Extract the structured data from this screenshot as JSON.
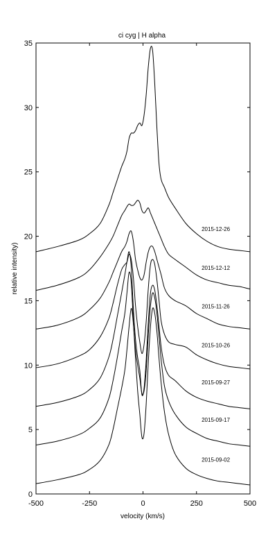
{
  "chart_data": {
    "type": "line",
    "title": "ci cyg | H alpha",
    "xlabel": "velocity (km/s)",
    "ylabel": "relative intensity)",
    "xlim": [
      -500,
      500
    ],
    "ylim": [
      0,
      35
    ],
    "xticks": [
      -500,
      -250,
      0,
      250,
      500
    ],
    "yticks": [
      0,
      5,
      10,
      15,
      20,
      25,
      30,
      35
    ],
    "grid": false,
    "series": [
      {
        "name": "2015-09-02",
        "label_at": [
          340,
          2.5
        ],
        "x": [
          -500,
          -400,
          -300,
          -250,
          -200,
          -160,
          -140,
          -120,
          -100,
          -85,
          -75,
          -65,
          -55,
          -45,
          -35,
          -25,
          -15,
          -5,
          5,
          15,
          25,
          35,
          45,
          55,
          65,
          75,
          85,
          100,
          120,
          150,
          200,
          250,
          300,
          350,
          400,
          450,
          500
        ],
        "y": [
          0.8,
          1.1,
          1.5,
          1.9,
          2.6,
          3.8,
          5.0,
          6.6,
          8.2,
          9.6,
          11.2,
          13.0,
          14.4,
          13.2,
          10.5,
          8.0,
          6.2,
          4.4,
          4.7,
          7.0,
          10.3,
          13.0,
          14.4,
          14.0,
          12.6,
          10.5,
          8.6,
          6.4,
          4.6,
          3.1,
          2.0,
          1.5,
          1.2,
          1.0,
          0.9,
          0.8,
          0.7
        ]
      },
      {
        "name": "2015-09-17",
        "label_at": [
          340,
          5.6
        ],
        "x": [
          -500,
          -400,
          -300,
          -250,
          -200,
          -160,
          -140,
          -120,
          -100,
          -85,
          -75,
          -65,
          -55,
          -45,
          -35,
          -25,
          -15,
          -5,
          5,
          15,
          25,
          35,
          45,
          55,
          65,
          75,
          85,
          100,
          120,
          150,
          200,
          250,
          300,
          350,
          400,
          450,
          500
        ],
        "y": [
          3.8,
          4.1,
          4.6,
          5.1,
          5.9,
          7.4,
          8.8,
          10.6,
          12.6,
          14.0,
          15.6,
          17.2,
          16.4,
          13.4,
          11.2,
          10.0,
          9.0,
          7.8,
          8.0,
          9.6,
          12.4,
          14.6,
          15.6,
          15.2,
          14.0,
          12.2,
          10.4,
          8.4,
          7.2,
          6.2,
          5.2,
          4.7,
          4.3,
          4.1,
          3.9,
          3.8,
          3.7
        ]
      },
      {
        "name": "2015-09-27",
        "label_at": [
          340,
          8.5
        ],
        "x": [
          -500,
          -400,
          -300,
          -250,
          -200,
          -160,
          -140,
          -120,
          -100,
          -85,
          -75,
          -65,
          -55,
          -45,
          -35,
          -25,
          -15,
          -5,
          5,
          15,
          25,
          35,
          45,
          55,
          65,
          75,
          85,
          100,
          120,
          150,
          200,
          250,
          300,
          350,
          400,
          450,
          500
        ],
        "y": [
          6.8,
          7.1,
          7.6,
          8.1,
          9.0,
          10.6,
          12.0,
          13.8,
          15.6,
          17.0,
          18.0,
          18.8,
          17.6,
          14.4,
          12.0,
          10.6,
          9.6,
          7.7,
          8.2,
          10.4,
          13.4,
          15.6,
          16.2,
          15.8,
          14.6,
          13.0,
          11.4,
          10.0,
          9.2,
          8.8,
          8.0,
          7.5,
          7.2,
          7.0,
          6.8,
          6.7,
          6.6
        ]
      },
      {
        "name": "2015-10-26",
        "label_at": [
          340,
          11.4
        ],
        "x": [
          -500,
          -400,
          -300,
          -250,
          -200,
          -160,
          -140,
          -120,
          -100,
          -85,
          -75,
          -65,
          -55,
          -45,
          -35,
          -25,
          -15,
          -5,
          5,
          15,
          25,
          35,
          45,
          55,
          65,
          75,
          85,
          100,
          120,
          150,
          200,
          250,
          300,
          350,
          400,
          450,
          500
        ],
        "y": [
          9.8,
          10.1,
          10.7,
          11.2,
          12.2,
          13.6,
          14.8,
          16.2,
          17.4,
          17.8,
          18.0,
          18.6,
          18.2,
          16.8,
          14.6,
          13.0,
          11.8,
          10.9,
          11.6,
          13.4,
          16.0,
          17.8,
          18.2,
          17.8,
          16.6,
          15.0,
          13.4,
          12.4,
          11.8,
          11.6,
          11.4,
          10.8,
          10.4,
          10.1,
          9.9,
          9.8,
          9.7
        ]
      },
      {
        "name": "2015-11-26",
        "label_at": [
          340,
          14.4
        ],
        "x": [
          -500,
          -400,
          -300,
          -250,
          -200,
          -160,
          -140,
          -120,
          -100,
          -85,
          -75,
          -65,
          -55,
          -45,
          -35,
          -25,
          -15,
          -5,
          5,
          15,
          25,
          35,
          45,
          55,
          65,
          75,
          85,
          100,
          120,
          150,
          200,
          250,
          300,
          350,
          400,
          450,
          500
        ],
        "y": [
          12.8,
          13.1,
          13.7,
          14.3,
          15.2,
          16.4,
          17.2,
          18.0,
          18.8,
          19.2,
          19.6,
          20.2,
          20.4,
          19.6,
          18.2,
          17.4,
          16.8,
          16.6,
          17.0,
          18.0,
          18.8,
          19.2,
          19.2,
          18.8,
          18.2,
          17.6,
          17.0,
          16.0,
          15.4,
          15.0,
          14.6,
          14.0,
          13.6,
          13.2,
          13.0,
          12.9,
          12.8
        ]
      },
      {
        "name": "2015-12-12",
        "label_at": [
          340,
          17.4
        ],
        "x": [
          -500,
          -400,
          -300,
          -250,
          -200,
          -160,
          -140,
          -120,
          -100,
          -85,
          -75,
          -65,
          -55,
          -45,
          -35,
          -25,
          -15,
          -5,
          5,
          15,
          25,
          35,
          45,
          55,
          65,
          75,
          85,
          100,
          120,
          150,
          200,
          250,
          300,
          350,
          400,
          450,
          500
        ],
        "y": [
          15.8,
          16.2,
          16.8,
          17.4,
          18.4,
          19.4,
          20.0,
          20.8,
          21.6,
          22.0,
          22.3,
          22.5,
          22.4,
          22.4,
          22.6,
          22.8,
          22.6,
          22.0,
          21.8,
          22.0,
          22.2,
          21.8,
          21.4,
          21.0,
          20.6,
          20.2,
          19.8,
          19.2,
          18.6,
          18.2,
          17.6,
          17.0,
          16.6,
          16.4,
          16.2,
          16.1,
          15.9
        ]
      },
      {
        "name": "2015-12-26",
        "label_at": [
          340,
          20.4
        ],
        "x": [
          -500,
          -400,
          -300,
          -250,
          -200,
          -160,
          -140,
          -120,
          -100,
          -85,
          -75,
          -65,
          -55,
          -45,
          -35,
          -25,
          -15,
          -5,
          5,
          15,
          25,
          35,
          45,
          55,
          65,
          75,
          85,
          100,
          120,
          150,
          200,
          250,
          300,
          350,
          400,
          450,
          500
        ],
        "y": [
          18.8,
          19.2,
          19.7,
          20.2,
          21.0,
          22.4,
          23.4,
          24.4,
          25.4,
          26.0,
          26.6,
          27.6,
          28.0,
          28.0,
          28.2,
          28.6,
          28.8,
          28.6,
          29.4,
          31.0,
          33.2,
          34.6,
          34.4,
          31.8,
          28.4,
          25.6,
          24.4,
          23.8,
          23.0,
          22.2,
          21.0,
          20.2,
          19.6,
          19.2,
          19.0,
          18.9,
          18.8
        ]
      }
    ]
  }
}
